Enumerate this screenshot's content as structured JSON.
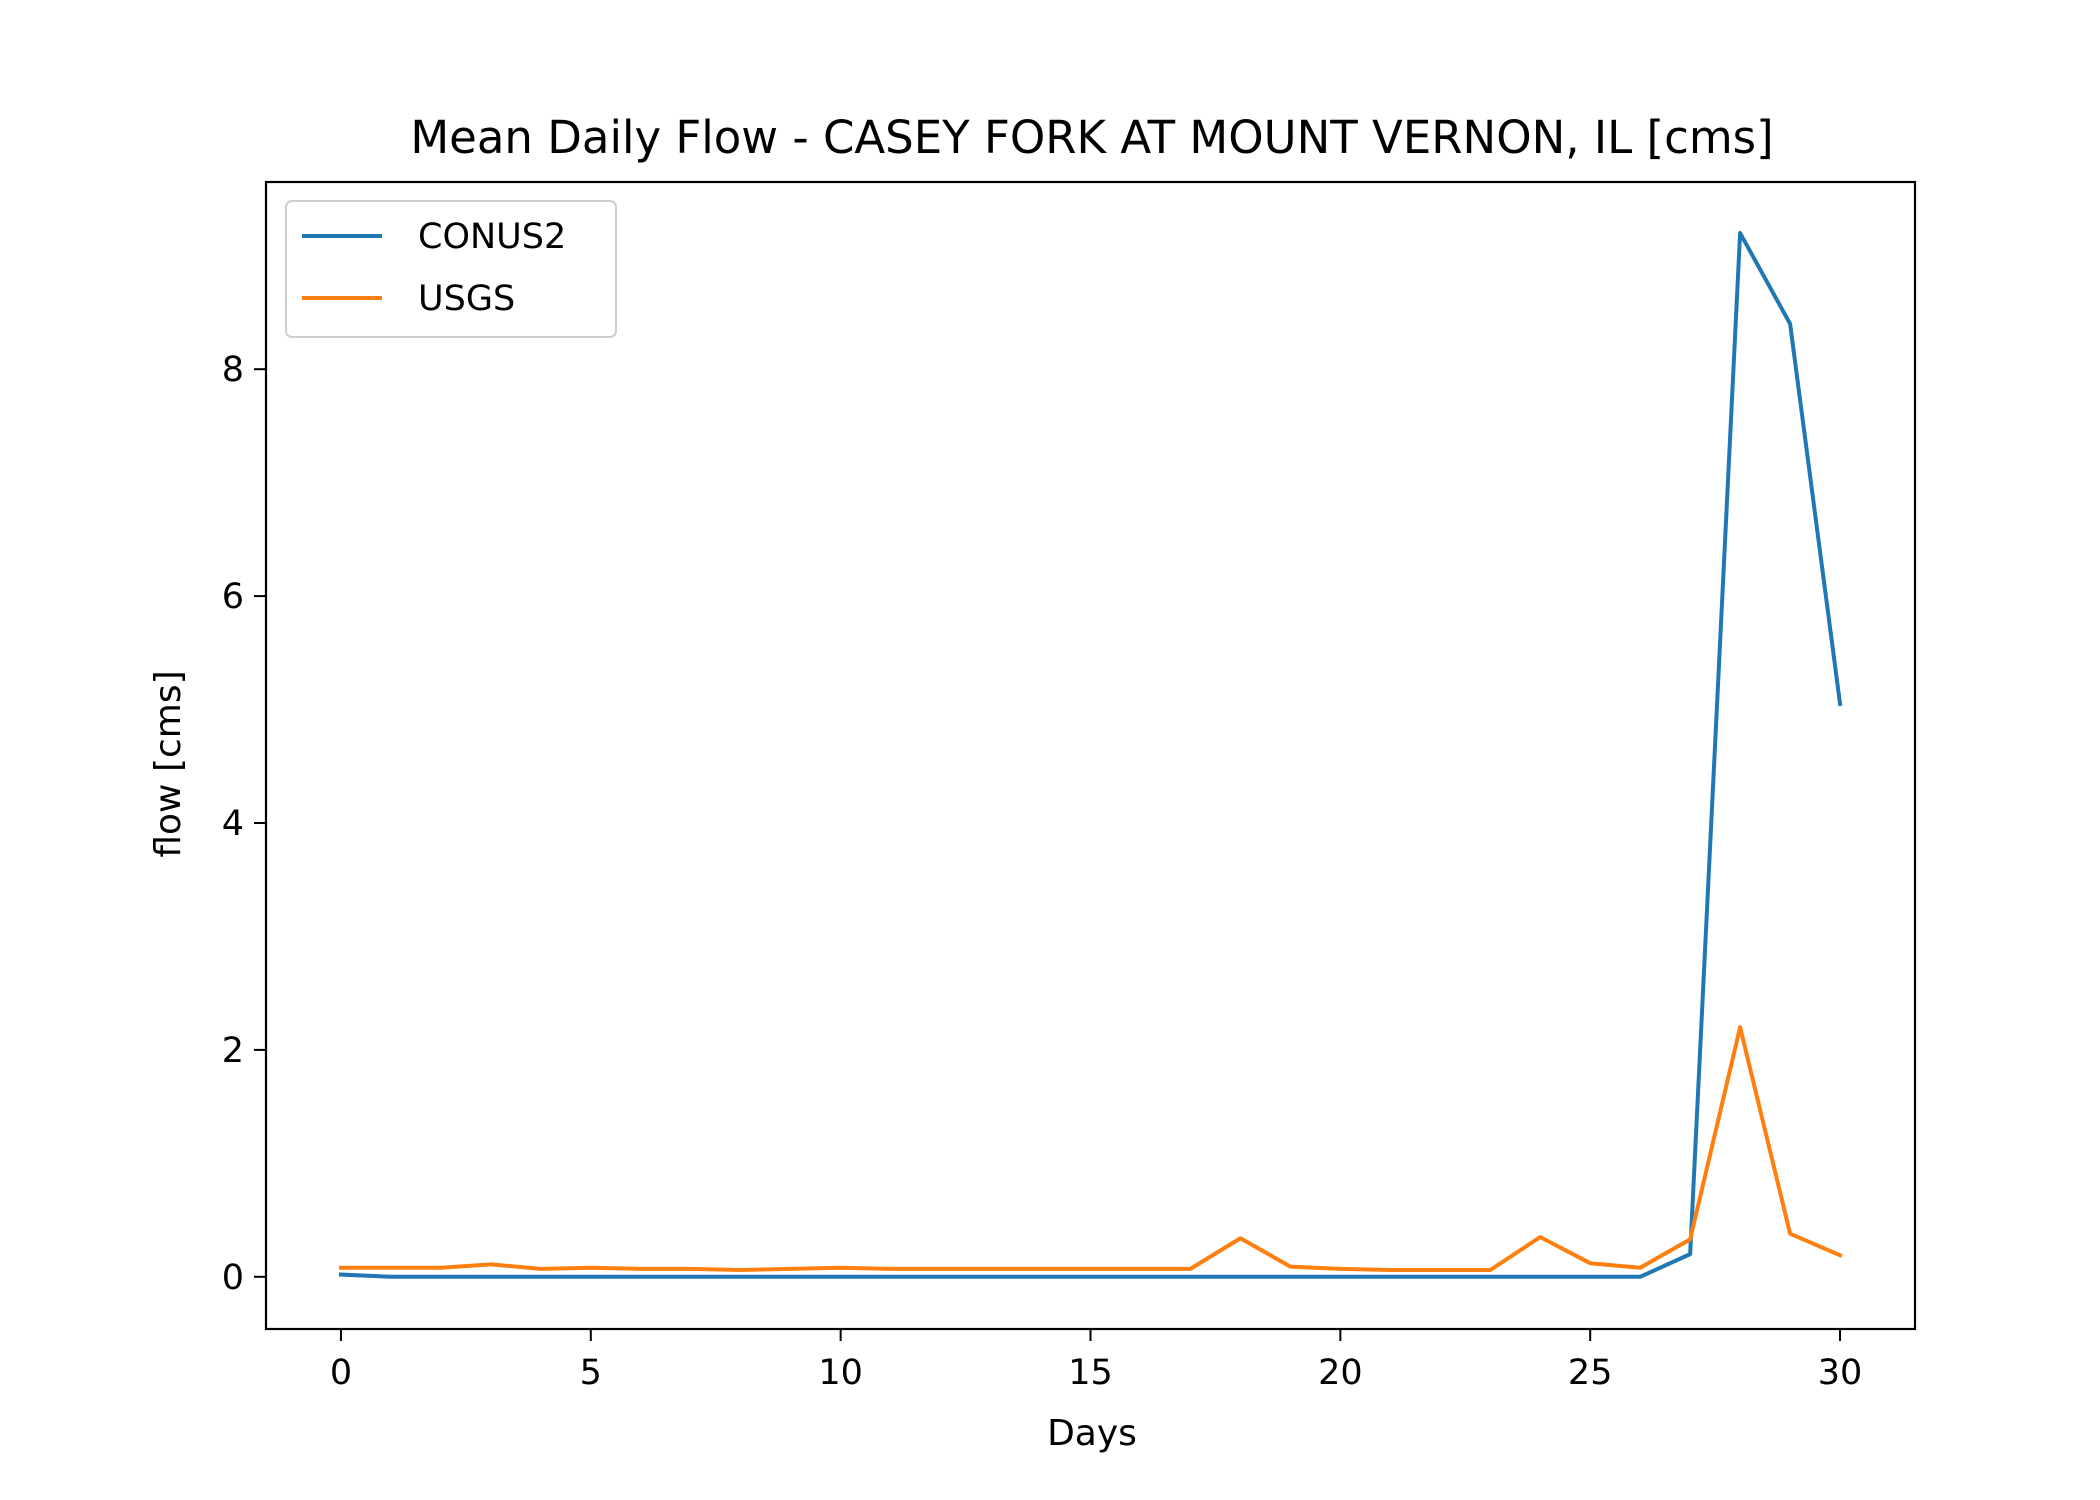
{
  "chart_data": {
    "type": "line",
    "title": "Mean Daily Flow - CASEY FORK AT MOUNT VERNON, IL [cms]",
    "xlabel": "Days",
    "ylabel": "flow [cms]",
    "xlim": [
      -1.5,
      31.5
    ],
    "ylim": [
      -0.46,
      9.65
    ],
    "xticks": [
      0,
      5,
      10,
      15,
      20,
      25,
      30
    ],
    "yticks": [
      0,
      2,
      4,
      6,
      8
    ],
    "grid": false,
    "legend": {
      "position": "top-left"
    },
    "x": [
      0,
      1,
      2,
      3,
      4,
      5,
      6,
      7,
      8,
      9,
      10,
      11,
      12,
      13,
      14,
      15,
      16,
      17,
      18,
      19,
      20,
      21,
      22,
      23,
      24,
      25,
      26,
      27,
      28,
      29,
      30
    ],
    "series": [
      {
        "name": "CONUS2",
        "color": "#1f77b4",
        "values": [
          0.02,
          0.0,
          0.0,
          0.0,
          0.0,
          0.0,
          0.0,
          0.0,
          0.0,
          0.0,
          0.0,
          0.0,
          0.0,
          0.0,
          0.0,
          0.0,
          0.0,
          0.0,
          0.0,
          0.0,
          0.0,
          0.0,
          0.0,
          0.0,
          0.0,
          0.0,
          0.0,
          0.2,
          9.2,
          8.4,
          5.05
        ]
      },
      {
        "name": "USGS",
        "color": "#ff7f0e",
        "values": [
          0.08,
          0.08,
          0.08,
          0.11,
          0.07,
          0.08,
          0.07,
          0.07,
          0.06,
          0.07,
          0.08,
          0.07,
          0.07,
          0.07,
          0.07,
          0.07,
          0.07,
          0.07,
          0.34,
          0.09,
          0.07,
          0.06,
          0.06,
          0.06,
          0.35,
          0.12,
          0.08,
          0.33,
          2.2,
          0.38,
          0.19
        ]
      }
    ]
  }
}
